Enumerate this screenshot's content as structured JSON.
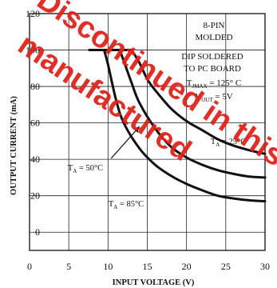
{
  "chart_data": {
    "type": "line",
    "xlabel": "INPUT VOLTAGE (V)",
    "ylabel": "OUTPUT CURRENT (mA)",
    "xlim": [
      0,
      30
    ],
    "ylim": [
      -10,
      120
    ],
    "x_ticks": [
      "0",
      "5",
      "10",
      "15",
      "20",
      "25",
      "30"
    ],
    "y_ticks": [
      "0",
      "20",
      "40",
      "60",
      "80",
      "100",
      "120"
    ],
    "grid": true,
    "annotation_lines": [
      "8-PIN",
      "MOLDED",
      "DIP SOLDERED",
      "TO PC BOARD"
    ],
    "tjmax": {
      "base": "T",
      "sub": "JMAX",
      "rest": " = 125° C"
    },
    "vout": {
      "base": "V",
      "sub": "OUT",
      "rest": " = 5V"
    },
    "series": [
      {
        "name": "TA = 85°C",
        "label": {
          "base": "T",
          "sub": "A",
          "rest": " = 85°C"
        },
        "points": [
          [
            9.5,
            100
          ],
          [
            10,
            92
          ],
          [
            11,
            73
          ],
          [
            12,
            60
          ],
          [
            14,
            46
          ],
          [
            16,
            37
          ],
          [
            18,
            31
          ],
          [
            20,
            26.5
          ],
          [
            22,
            23
          ],
          [
            24,
            20
          ],
          [
            26,
            18.5
          ],
          [
            28,
            17.5
          ],
          [
            30,
            17
          ]
        ]
      },
      {
        "name": "TA = 50°C",
        "label": {
          "base": "T",
          "sub": "A",
          "rest": " = 50°C"
        },
        "points": [
          [
            11.5,
            100
          ],
          [
            12,
            94
          ],
          [
            13,
            82
          ],
          [
            14,
            71
          ],
          [
            16,
            57
          ],
          [
            18,
            47
          ],
          [
            20,
            41
          ],
          [
            22,
            37
          ],
          [
            24,
            34
          ],
          [
            26,
            32
          ],
          [
            28,
            30.5
          ],
          [
            30,
            30
          ]
        ]
      },
      {
        "name": "TA = 25°C",
        "label": {
          "base": "T",
          "sub": "A",
          "rest": " = 25°C"
        },
        "points": [
          [
            13,
            100
          ],
          [
            14,
            93
          ],
          [
            15,
            84
          ],
          [
            16,
            78
          ],
          [
            18,
            68
          ],
          [
            20,
            61
          ],
          [
            22,
            56
          ],
          [
            24,
            51
          ],
          [
            26,
            47.5
          ],
          [
            28,
            45
          ],
          [
            30,
            43
          ]
        ]
      }
    ],
    "plateau": {
      "x": [
        7.5,
        13
      ],
      "y": 100
    }
  },
  "watermark": [
    "Discontinued in this",
    "manufactured"
  ],
  "colors": {
    "curve": "#111111",
    "grid": "#222222",
    "watermark": "#e0231c"
  }
}
